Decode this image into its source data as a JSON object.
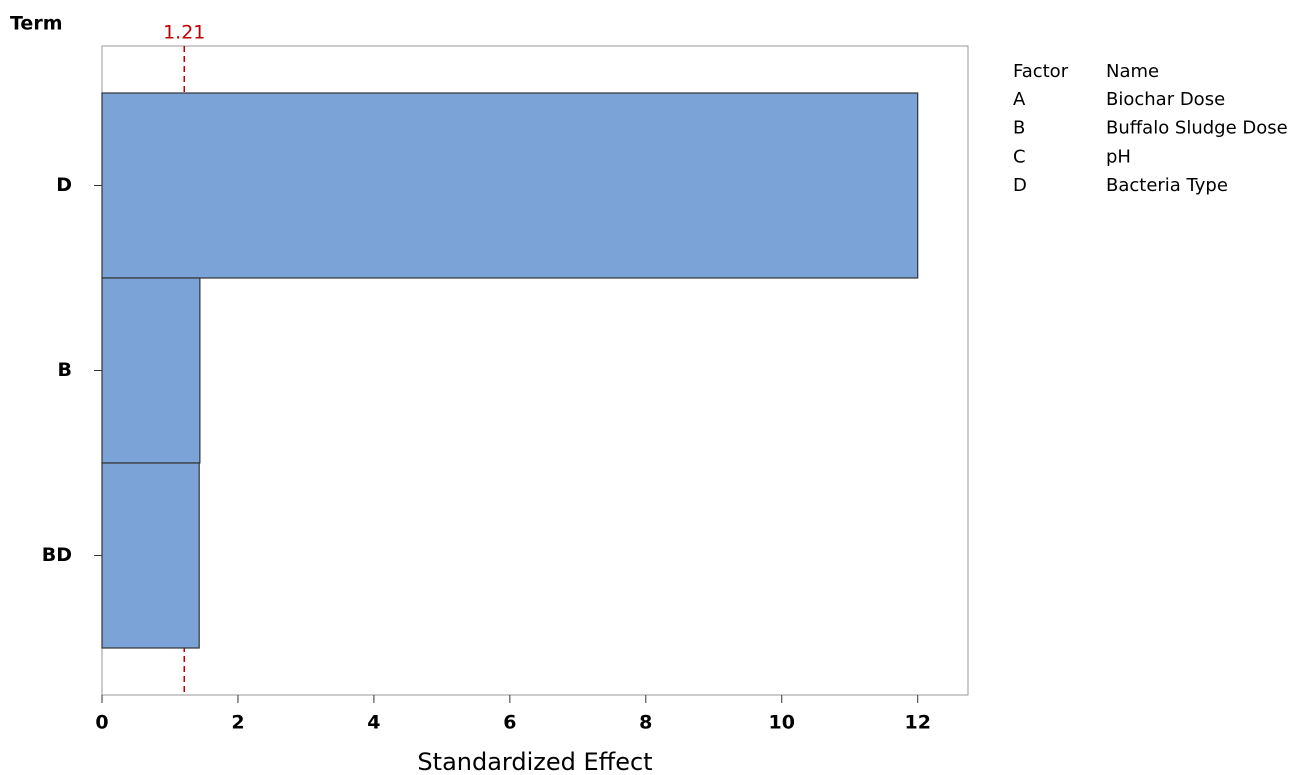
{
  "chart_data": {
    "type": "bar",
    "orientation": "horizontal",
    "y_label": "Term",
    "x_label": "Standardized Effect",
    "categories": [
      "D",
      "B",
      "BD"
    ],
    "values": [
      12.0,
      1.44,
      1.43
    ],
    "color": "#7ba3d8",
    "xlim": [
      0,
      12.74
    ],
    "xticks": [
      0,
      2,
      4,
      6,
      8,
      10,
      12
    ],
    "reference_line": 1.21,
    "reference_color": "#c00000",
    "factor_table": {
      "header": [
        "Factor",
        "Name"
      ],
      "rows": [
        [
          "A",
          "Biochar Dose"
        ],
        [
          "B",
          "Buffalo Sludge Dose"
        ],
        [
          "C",
          "pH"
        ],
        [
          "D",
          "Bacteria Type"
        ]
      ]
    }
  }
}
